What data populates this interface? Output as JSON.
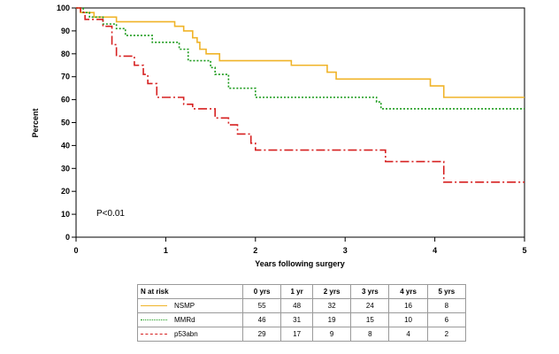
{
  "chart_data": {
    "type": "line",
    "title": "",
    "xlabel": "Years following surgery",
    "ylabel": "Percent",
    "xlim": [
      0,
      5
    ],
    "ylim": [
      0,
      100
    ],
    "x_ticks": [
      0,
      1,
      2,
      3,
      4,
      5
    ],
    "y_ticks": [
      0,
      10,
      20,
      30,
      40,
      50,
      60,
      70,
      80,
      90,
      100
    ],
    "grid": false,
    "annotation": "P<0.01",
    "series": [
      {
        "name": "NSMP",
        "color": "#f0b429",
        "dash": "solid",
        "points": [
          [
            0,
            100
          ],
          [
            0.05,
            98
          ],
          [
            0.2,
            96
          ],
          [
            0.45,
            94
          ],
          [
            1.1,
            92
          ],
          [
            1.2,
            90
          ],
          [
            1.3,
            87
          ],
          [
            1.35,
            85
          ],
          [
            1.38,
            82
          ],
          [
            1.45,
            80
          ],
          [
            1.6,
            77
          ],
          [
            2.4,
            75
          ],
          [
            2.8,
            72
          ],
          [
            2.9,
            69
          ],
          [
            3.95,
            66
          ],
          [
            4.1,
            61
          ],
          [
            5.0,
            61
          ]
        ]
      },
      {
        "name": "MMRd",
        "color": "#1a9a1a",
        "dash": "dotted",
        "points": [
          [
            0,
            100
          ],
          [
            0.08,
            98
          ],
          [
            0.15,
            96
          ],
          [
            0.3,
            93
          ],
          [
            0.45,
            91
          ],
          [
            0.55,
            88
          ],
          [
            0.85,
            85
          ],
          [
            1.15,
            82
          ],
          [
            1.25,
            77
          ],
          [
            1.5,
            74
          ],
          [
            1.55,
            71
          ],
          [
            1.7,
            65
          ],
          [
            2.0,
            61
          ],
          [
            3.35,
            59
          ],
          [
            3.4,
            56
          ],
          [
            5.0,
            56
          ]
        ]
      },
      {
        "name": "p53abn",
        "color": "#d62020",
        "dash": "dashdot",
        "points": [
          [
            0,
            100
          ],
          [
            0.05,
            98
          ],
          [
            0.1,
            95
          ],
          [
            0.3,
            92
          ],
          [
            0.4,
            84
          ],
          [
            0.45,
            79
          ],
          [
            0.65,
            75
          ],
          [
            0.75,
            71
          ],
          [
            0.8,
            67
          ],
          [
            0.9,
            61
          ],
          [
            1.2,
            58
          ],
          [
            1.3,
            56
          ],
          [
            1.55,
            52
          ],
          [
            1.7,
            49
          ],
          [
            1.8,
            45
          ],
          [
            1.95,
            41
          ],
          [
            2.0,
            38
          ],
          [
            3.45,
            33
          ],
          [
            4.1,
            24
          ],
          [
            5.0,
            24
          ]
        ]
      }
    ]
  },
  "risk_table": {
    "header": "N at risk",
    "columns": [
      "0 yrs",
      "1 yr",
      "2 yrs",
      "3 yrs",
      "4 yrs",
      "5 yrs"
    ],
    "rows": [
      {
        "label": "NSMP",
        "values": [
          "55",
          "48",
          "32",
          "24",
          "16",
          "8"
        ]
      },
      {
        "label": "MMRd",
        "values": [
          "46",
          "31",
          "19",
          "15",
          "10",
          "6"
        ]
      },
      {
        "label": "p53abn",
        "values": [
          "29",
          "17",
          "9",
          "8",
          "4",
          "2"
        ]
      }
    ]
  }
}
